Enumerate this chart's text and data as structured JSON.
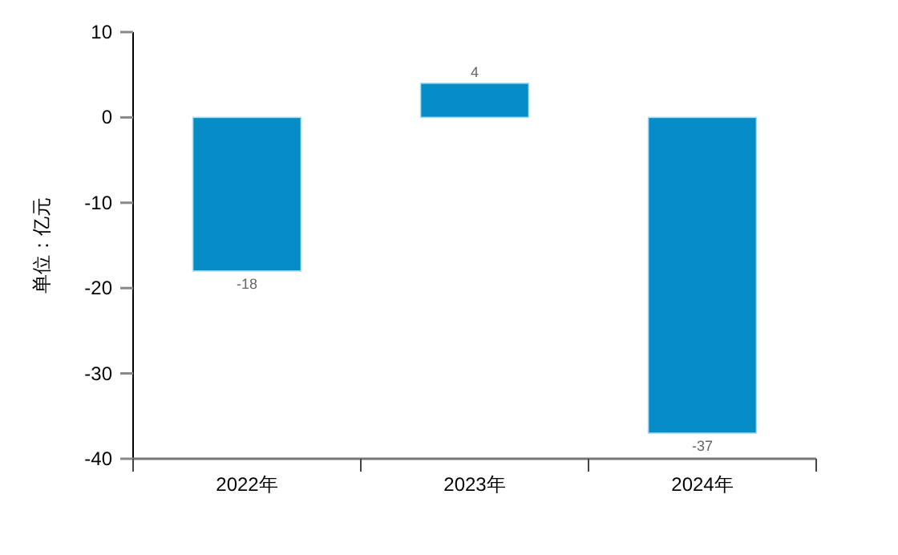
{
  "chart_data": {
    "type": "bar",
    "ylabel": "单位：亿元",
    "categories": [
      "2022年",
      "2023年",
      "2024年"
    ],
    "values": [
      -18,
      4,
      -37
    ],
    "color": "#068dc7",
    "ylim": [
      -40,
      10
    ],
    "yticks": [
      -40,
      -30,
      -20,
      -10,
      0,
      10
    ],
    "data_labels": true,
    "grid": false
  }
}
